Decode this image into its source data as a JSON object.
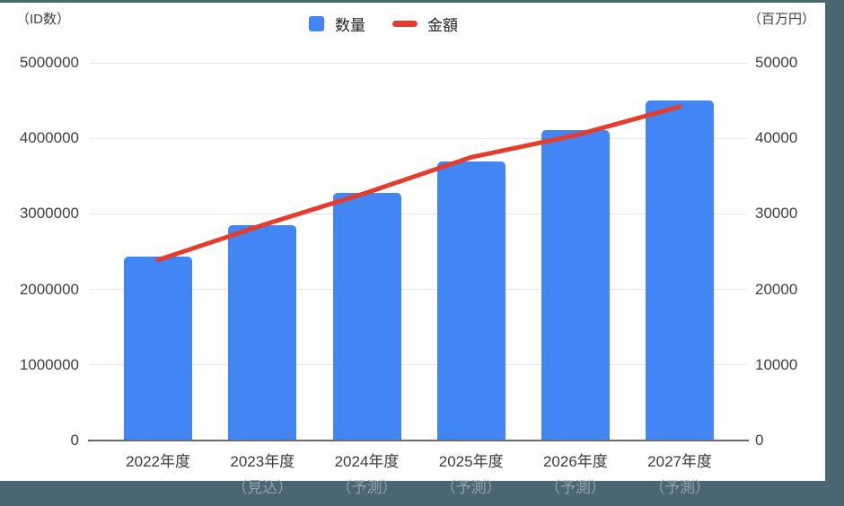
{
  "header": {
    "left_axis_unit": "（ID数）",
    "right_axis_unit": "（百万円）"
  },
  "legend": [
    {
      "label": "数量",
      "marker": "square",
      "color": "#4285f4"
    },
    {
      "label": "金額",
      "marker": "dash",
      "color": "#e53c2b"
    }
  ],
  "window": {
    "frame_color": "#4b6673"
  },
  "chart_data": {
    "type": "bar",
    "subtype": "combo-bar-line",
    "title": "",
    "categories": [
      "2022年度",
      "2023年度",
      "2024年度",
      "2025年度",
      "2026年度",
      "2027年度"
    ],
    "category_sublabels": [
      "",
      "（見込）",
      "（予測）",
      "（予測）",
      "（予測）",
      "（予測）"
    ],
    "series": [
      {
        "name": "数量",
        "type": "bar",
        "axis": "left",
        "unit": "ID数",
        "color": "#4285f4",
        "values": [
          2430000,
          2850000,
          3280000,
          3690000,
          4110000,
          4500000
        ]
      },
      {
        "name": "金額",
        "type": "line",
        "axis": "right",
        "unit": "百万円",
        "color": "#e53c2b",
        "values": [
          23900,
          28500,
          32800,
          37500,
          40400,
          44200
        ]
      }
    ],
    "left_axis": {
      "label": "（ID数）",
      "min": 0,
      "max": 5000000,
      "ticks": [
        0,
        1000000,
        2000000,
        3000000,
        4000000,
        5000000
      ]
    },
    "right_axis": {
      "label": "（百万円）",
      "min": 0,
      "max": 50000,
      "ticks": [
        0,
        10000,
        20000,
        30000,
        40000,
        50000
      ]
    },
    "grid": true,
    "gridline_color": "#e4e4e4",
    "legend_position": "top-center"
  }
}
